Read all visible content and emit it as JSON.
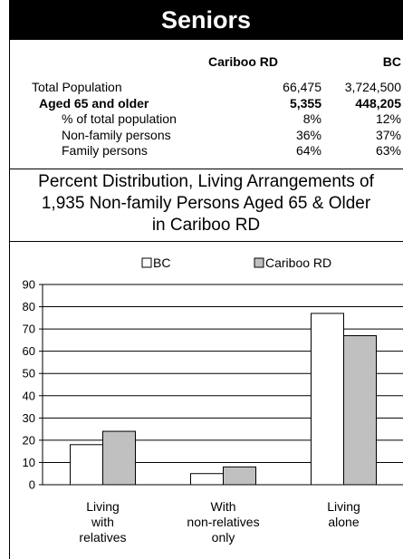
{
  "header": {
    "title": "Seniors"
  },
  "table": {
    "columns": [
      "Cariboo RD",
      "BC"
    ],
    "rows": [
      {
        "label": "Total Population",
        "cariboo": "66,475",
        "bc": "3,724,500",
        "bold": false,
        "indent": 0
      },
      {
        "label": "Aged 65 and older",
        "cariboo": "5,355",
        "bc": "448,205",
        "bold": true,
        "indent": 1
      },
      {
        "label": "% of total population",
        "cariboo": "8%",
        "bc": "12%",
        "bold": false,
        "indent": 2
      },
      {
        "label": "Non-family persons",
        "cariboo": "36%",
        "bc": "37%",
        "bold": false,
        "indent": 2
      },
      {
        "label": "Family persons",
        "cariboo": "64%",
        "bc": "63%",
        "bold": false,
        "indent": 2
      }
    ]
  },
  "caption": {
    "line1": "Percent Distribution, Living Arrangements of",
    "line2": "1,935 Non-family Persons Aged 65 & Older",
    "line3": "in Cariboo RD"
  },
  "chart_data": {
    "type": "bar",
    "categories": [
      [
        "Living",
        "with",
        "relatives"
      ],
      [
        "With",
        "non-relatives",
        "only"
      ],
      [
        "Living",
        "alone"
      ]
    ],
    "series": [
      {
        "name": "BC",
        "values": [
          18,
          5,
          77
        ],
        "color": "#ffffff"
      },
      {
        "name": "Cariboo RD",
        "values": [
          24,
          8,
          67
        ],
        "color": "#c0c0c0"
      }
    ],
    "yticks": [
      0,
      10,
      20,
      30,
      40,
      50,
      60,
      70,
      80,
      90
    ],
    "ylim": [
      0,
      90
    ],
    "grid": true,
    "legend": "top"
  }
}
